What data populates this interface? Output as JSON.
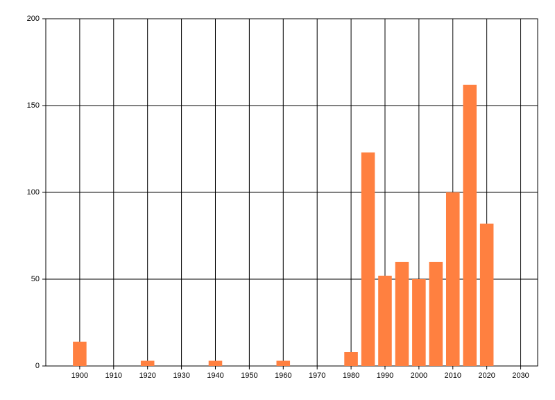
{
  "chart_data": {
    "type": "bar",
    "x": [
      1900,
      1920,
      1940,
      1960,
      1980,
      1985,
      1990,
      1995,
      2000,
      2005,
      2010,
      2015,
      2020
    ],
    "values": [
      14,
      3,
      3,
      3,
      8,
      123,
      52,
      60,
      50,
      60,
      100,
      162,
      82
    ],
    "color": "#ff8040",
    "xlim": [
      1890,
      2035
    ],
    "xticks": [
      1900,
      1910,
      1920,
      1930,
      1940,
      1950,
      1960,
      1970,
      1980,
      1990,
      2000,
      2010,
      2020,
      2030
    ],
    "ylim": [
      0,
      200
    ],
    "yticks": [
      0,
      50,
      100,
      150,
      200
    ],
    "bar_width": 4,
    "grid": true
  }
}
